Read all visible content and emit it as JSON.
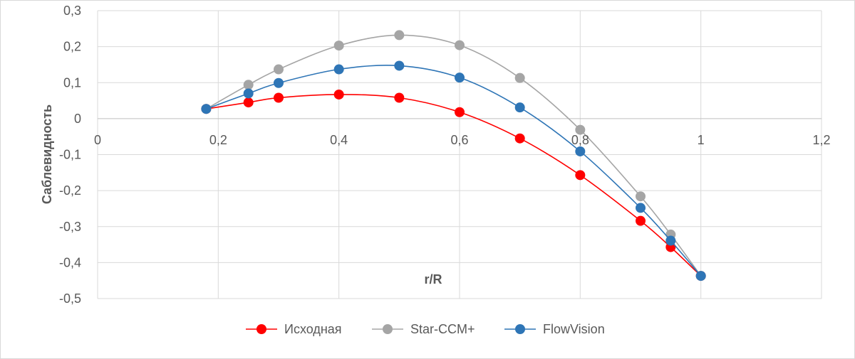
{
  "chart_data": {
    "type": "scatter",
    "xlabel": "r/R",
    "ylabel": "Саблевидность",
    "xlim": [
      0,
      1.2
    ],
    "ylim": [
      -0.5,
      0.3
    ],
    "x_ticks": [
      "0",
      "0,2",
      "0,4",
      "0,6",
      "0,8",
      "1",
      "1,2"
    ],
    "y_ticks": [
      "0,3",
      "0,2",
      "0,1",
      "0",
      "-0,1",
      "-0,2",
      "-0,3",
      "-0,4",
      "-0,5"
    ],
    "grid": true,
    "smooth_lines": true,
    "legend_position": "bottom",
    "series": [
      {
        "name": "Исходная",
        "color": "#ff0000",
        "x": [
          0.18,
          0.25,
          0.3,
          0.4,
          0.5,
          0.6,
          0.7,
          0.8,
          0.9,
          0.95,
          1.0
        ],
        "y": [
          0.027,
          0.045,
          0.058,
          0.067,
          0.058,
          0.018,
          -0.055,
          -0.157,
          -0.284,
          -0.357,
          -0.437
        ]
      },
      {
        "name": "Star-CCM+",
        "color": "#a5a5a5",
        "x": [
          0.18,
          0.25,
          0.3,
          0.4,
          0.5,
          0.6,
          0.7,
          0.8,
          0.9,
          0.95,
          1.0
        ],
        "y": [
          0.027,
          0.094,
          0.137,
          0.203,
          0.232,
          0.204,
          0.113,
          -0.031,
          -0.216,
          -0.322,
          -0.437
        ]
      },
      {
        "name": "FlowVision",
        "color": "#2e75b6",
        "x": [
          0.18,
          0.25,
          0.3,
          0.4,
          0.5,
          0.6,
          0.7,
          0.8,
          0.9,
          0.95,
          1.0
        ],
        "y": [
          0.027,
          0.07,
          0.099,
          0.137,
          0.147,
          0.114,
          0.031,
          -0.091,
          -0.248,
          -0.339,
          -0.437
        ]
      }
    ]
  }
}
